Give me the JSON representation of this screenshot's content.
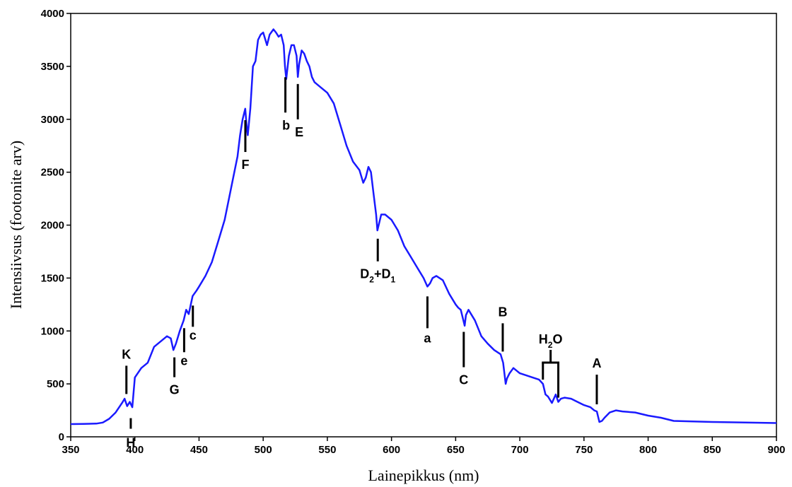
{
  "chart_data": {
    "type": "line",
    "xlabel": "Lainepikkus (nm)",
    "ylabel": "Intensiivsus (footonite arv)",
    "xlim": [
      350,
      900
    ],
    "ylim": [
      0,
      4000
    ],
    "xticks": [
      "350",
      "400",
      "450",
      "500",
      "550",
      "600",
      "650",
      "700",
      "750",
      "800",
      "850",
      "900"
    ],
    "yticks": [
      "0",
      "500",
      "1000",
      "1500",
      "2000",
      "2500",
      "3000",
      "3500",
      "4000"
    ],
    "grid": false,
    "series": [
      {
        "color": "#1a1aff",
        "x": [
          350,
          360,
          370,
          375,
          380,
          385,
          390,
          392,
          394,
          396,
          398,
          400,
          405,
          410,
          415,
          420,
          425,
          428,
          430,
          432,
          435,
          438,
          440,
          442,
          445,
          448,
          450,
          455,
          460,
          465,
          470,
          475,
          480,
          482,
          484,
          486,
          487,
          488,
          490,
          492,
          494,
          496,
          498,
          500,
          503,
          505,
          508,
          510,
          512,
          514,
          516,
          517,
          518,
          520,
          522,
          524,
          526,
          527,
          528,
          530,
          532,
          534,
          536,
          538,
          540,
          545,
          550,
          555,
          560,
          565,
          570,
          575,
          578,
          580,
          582,
          584,
          586,
          588,
          589,
          590,
          592,
          595,
          600,
          605,
          610,
          615,
          620,
          625,
          628,
          630,
          632,
          635,
          640,
          645,
          650,
          652,
          654,
          656,
          657,
          658,
          660,
          665,
          670,
          675,
          680,
          685,
          687,
          688,
          689,
          690,
          692,
          695,
          698,
          700,
          705,
          710,
          715,
          718,
          720,
          722,
          725,
          728,
          730,
          732,
          735,
          740,
          745,
          750,
          755,
          758,
          760,
          762,
          764,
          766,
          770,
          775,
          780,
          790,
          800,
          810,
          820,
          850,
          900
        ],
        "y": [
          120,
          122,
          125,
          135,
          170,
          230,
          320,
          360,
          290,
          330,
          280,
          560,
          650,
          700,
          850,
          900,
          950,
          930,
          820,
          880,
          1000,
          1100,
          1200,
          1160,
          1330,
          1380,
          1420,
          1520,
          1650,
          1850,
          2050,
          2350,
          2650,
          2850,
          3000,
          3100,
          2950,
          2850,
          3100,
          3500,
          3550,
          3750,
          3800,
          3820,
          3700,
          3800,
          3850,
          3820,
          3780,
          3800,
          3700,
          3500,
          3380,
          3600,
          3700,
          3700,
          3600,
          3400,
          3520,
          3650,
          3620,
          3550,
          3500,
          3400,
          3350,
          3300,
          3250,
          3150,
          2950,
          2750,
          2600,
          2520,
          2400,
          2450,
          2550,
          2500,
          2300,
          2100,
          1950,
          2000,
          2100,
          2100,
          2050,
          1950,
          1800,
          1700,
          1600,
          1500,
          1420,
          1450,
          1500,
          1520,
          1480,
          1350,
          1250,
          1220,
          1200,
          1100,
          1050,
          1150,
          1200,
          1100,
          950,
          880,
          820,
          780,
          700,
          600,
          500,
          550,
          600,
          650,
          620,
          600,
          580,
          560,
          540,
          500,
          400,
          380,
          320,
          400,
          330,
          360,
          370,
          360,
          330,
          300,
          280,
          250,
          240,
          140,
          150,
          180,
          230,
          250,
          240,
          230,
          200,
          180,
          150,
          140,
          130
        ]
      }
    ],
    "annotations": [
      {
        "label": "K",
        "x": 393.4
      },
      {
        "label": "H",
        "x": 396.8
      },
      {
        "label": "G",
        "x": 430.8
      },
      {
        "label": "e",
        "x": 438.4
      },
      {
        "label": "c",
        "x": 445.2
      },
      {
        "label": "F",
        "x": 486.1
      },
      {
        "label": "b",
        "x": 517.3
      },
      {
        "label": "E",
        "x": 527.0
      },
      {
        "label": "D",
        "sub1": "2",
        "mid": "+D",
        "sub2": "1",
        "x": 589.3
      },
      {
        "label": "a",
        "x": 628.0
      },
      {
        "label": "C",
        "x": 656.3
      },
      {
        "label": "B",
        "x": 686.7
      },
      {
        "label": "H",
        "sub1": "2",
        "mid": "O",
        "x": 718.0,
        "x2": 730.0
      },
      {
        "label": "A",
        "x": 760.0
      }
    ]
  }
}
